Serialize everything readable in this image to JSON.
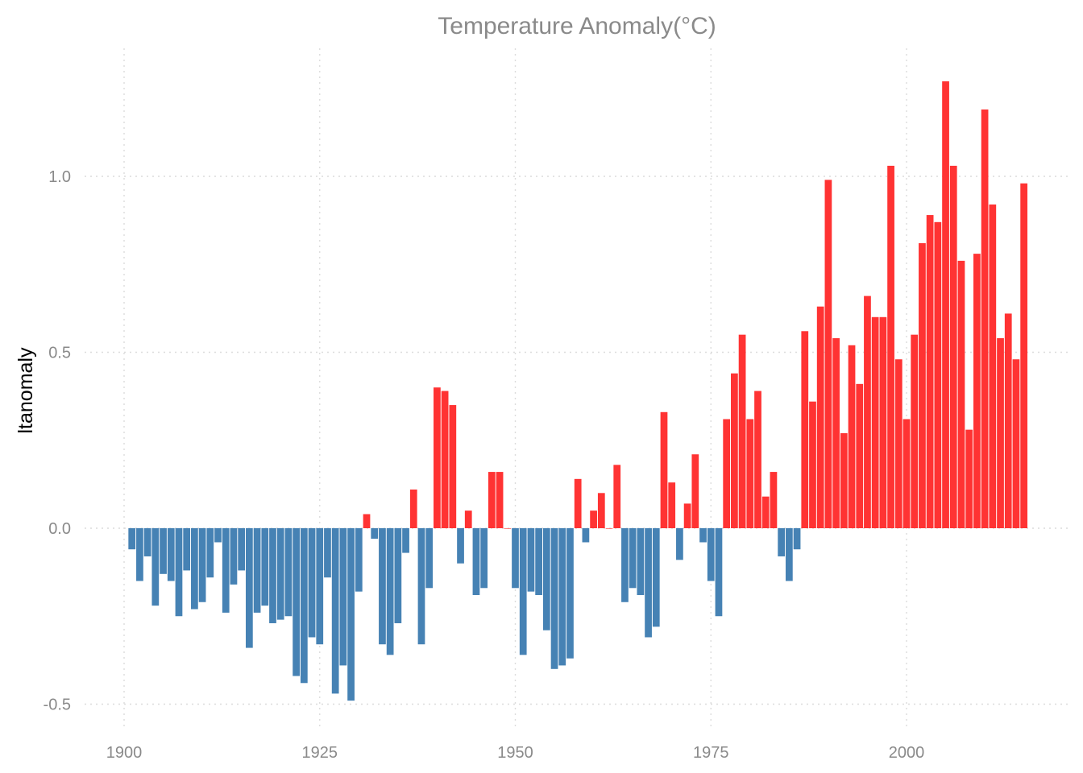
{
  "chart_data": {
    "type": "bar",
    "title": "Temperature Anomaly(°C)",
    "xlabel": "",
    "ylabel": "ltanomaly",
    "xlim": [
      1897,
      2019
    ],
    "ylim": [
      -0.55,
      1.3
    ],
    "x_ticks": [
      1900,
      1925,
      1950,
      1975,
      2000
    ],
    "x_tick_labels": [
      "1900",
      "1925",
      "1950",
      "1975",
      "2000"
    ],
    "y_ticks": [
      -0.5,
      0.0,
      0.5,
      1.0
    ],
    "y_tick_labels": [
      "-0.5",
      "0.0",
      "0.5",
      "1.0"
    ],
    "grid": true,
    "grid_style": "dotted",
    "legend": "none",
    "colors": {
      "positive": "#ff3333",
      "negative": "#4682b4",
      "title": "#8a8a8a",
      "tick": "#8a8a8a",
      "grid": "#dcdcdc"
    },
    "x": [
      1901,
      1902,
      1903,
      1904,
      1905,
      1906,
      1907,
      1908,
      1909,
      1910,
      1911,
      1912,
      1913,
      1914,
      1915,
      1916,
      1917,
      1918,
      1919,
      1920,
      1921,
      1922,
      1923,
      1924,
      1925,
      1926,
      1927,
      1928,
      1929,
      1930,
      1931,
      1932,
      1933,
      1934,
      1935,
      1936,
      1937,
      1938,
      1939,
      1940,
      1941,
      1942,
      1943,
      1944,
      1945,
      1946,
      1947,
      1948,
      1949,
      1950,
      1951,
      1952,
      1953,
      1954,
      1955,
      1956,
      1957,
      1958,
      1959,
      1960,
      1961,
      1962,
      1963,
      1964,
      1965,
      1966,
      1967,
      1968,
      1969,
      1970,
      1971,
      1972,
      1973,
      1974,
      1975,
      1976,
      1977,
      1978,
      1979,
      1980,
      1981,
      1982,
      1983,
      1984,
      1985,
      1986,
      1987,
      1988,
      1989,
      1990,
      1991,
      1992,
      1993,
      1994,
      1995,
      1996,
      1997,
      1998,
      1999,
      2000,
      2001,
      2002,
      2003,
      2004,
      2005,
      2006,
      2007,
      2008,
      2009,
      2010,
      2011,
      2012,
      2013,
      2014,
      2015
    ],
    "values": [
      -0.06,
      -0.15,
      -0.08,
      -0.22,
      -0.13,
      -0.15,
      -0.25,
      -0.12,
      -0.23,
      -0.21,
      -0.14,
      -0.04,
      -0.24,
      -0.16,
      -0.12,
      -0.34,
      -0.24,
      -0.22,
      -0.27,
      -0.26,
      -0.25,
      -0.42,
      -0.44,
      -0.31,
      -0.33,
      -0.14,
      -0.47,
      -0.39,
      -0.49,
      -0.18,
      0.04,
      -0.03,
      -0.33,
      -0.36,
      -0.27,
      -0.07,
      0.11,
      -0.33,
      -0.17,
      0.4,
      0.39,
      0.35,
      -0.1,
      0.05,
      -0.19,
      -0.17,
      0.16,
      0.16,
      0.0,
      -0.17,
      -0.36,
      -0.18,
      -0.19,
      -0.29,
      -0.4,
      -0.39,
      -0.37,
      0.14,
      -0.04,
      0.05,
      0.1,
      0.0,
      0.18,
      -0.21,
      -0.17,
      -0.19,
      -0.31,
      -0.28,
      0.33,
      0.13,
      -0.09,
      0.07,
      0.21,
      -0.04,
      -0.15,
      -0.25,
      0.31,
      0.44,
      0.55,
      0.31,
      0.39,
      0.09,
      0.16,
      -0.08,
      -0.15,
      -0.06,
      0.56,
      0.36,
      0.63,
      0.99,
      0.54,
      0.27,
      0.52,
      0.41,
      0.66,
      0.6,
      0.6,
      1.03,
      0.48,
      0.31,
      0.55,
      0.81,
      0.89,
      0.87,
      1.27,
      1.03,
      0.76,
      0.28,
      0.78,
      1.19,
      0.92,
      0.54,
      0.61,
      0.48,
      0.98
    ]
  }
}
